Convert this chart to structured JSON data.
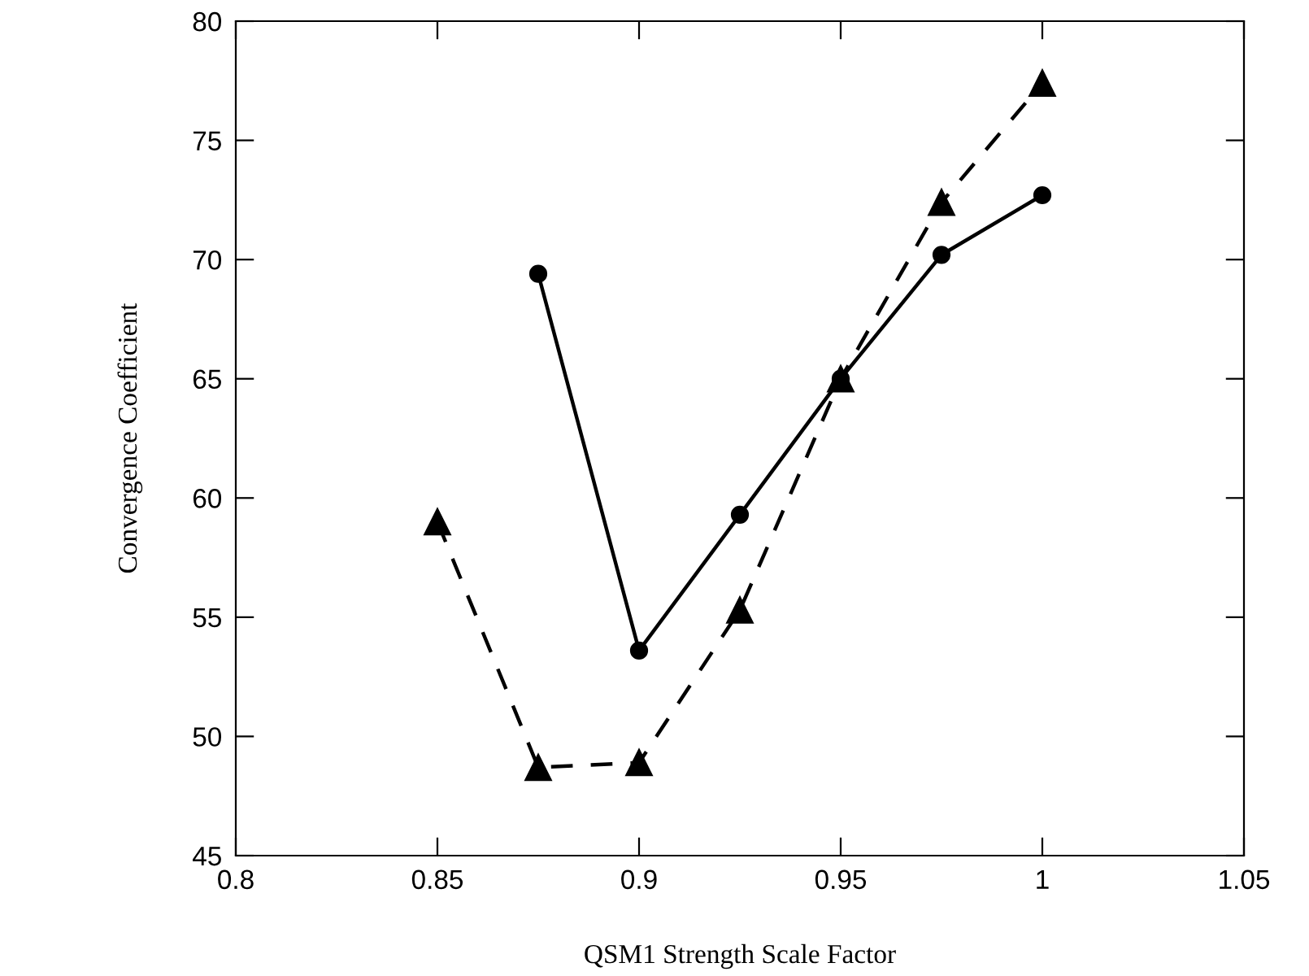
{
  "chart_data": {
    "type": "line",
    "xlabel": "QSM1 Strength Scale Factor",
    "ylabel": "Convergence Coefficient",
    "xlim": [
      0.8,
      1.05
    ],
    "xticks": [
      0.8,
      0.85,
      0.9,
      0.95,
      1,
      1.05
    ],
    "ylim": [
      45,
      80
    ],
    "yticks": [
      45,
      50,
      55,
      60,
      65,
      70,
      75,
      80
    ],
    "grid": false,
    "legend": false,
    "series": [
      {
        "color": "#000000",
        "marker": "circle",
        "line_style": "solid",
        "x": [
          0.875,
          0.9,
          0.925,
          0.95,
          0.975,
          1.0
        ],
        "values": [
          69.4,
          53.6,
          59.3,
          65.0,
          70.2,
          72.7
        ]
      },
      {
        "color": "#000000",
        "marker": "triangle",
        "line_style": "dashed",
        "x": [
          0.85,
          0.875,
          0.9,
          0.925,
          0.95,
          0.975,
          1.0
        ],
        "values": [
          59.0,
          48.7,
          48.9,
          55.3,
          65.0,
          72.4,
          77.4
        ]
      }
    ]
  }
}
